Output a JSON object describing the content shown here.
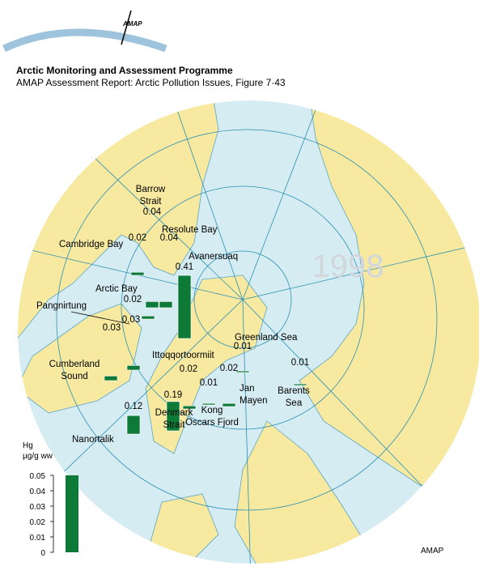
{
  "header": {
    "logo": "AMAP",
    "title": "Arctic Monitoring and Assessment Programme",
    "subtitle": "AMAP Assessment Report: Arctic Pollution Issues, Figure 7·43"
  },
  "chart_data": {
    "type": "map-bar",
    "year_label": "1998",
    "color": "#0e7a38",
    "stations": [
      {
        "label": [
          "Cambridge Bay"
        ],
        "value": 0.02
      },
      {
        "label": [
          "Barrow",
          "Strait"
        ],
        "value": 0.04
      },
      {
        "label": [
          "Resolute Bay"
        ],
        "value": 0.04
      },
      {
        "label": [
          "Avanersuaq"
        ],
        "value": 0.41
      },
      {
        "label": [
          "Arctic Bay"
        ],
        "value": 0.02
      },
      {
        "label": [
          "Pangnirtung"
        ],
        "value": 0.03
      },
      {
        "label": [
          "Cumberland",
          "Sound"
        ],
        "value": 0.03
      },
      {
        "label": [
          "Greenland Sea"
        ],
        "value": 0.01
      },
      {
        "label": [
          "Ittoqqortoormiit"
        ],
        "value": 0.02
      },
      {
        "label": [
          "Kong",
          "Oscars Fjord"
        ],
        "value": 0.01
      },
      {
        "label": [
          "Jan",
          "Mayen"
        ],
        "value": 0.02
      },
      {
        "label": [
          "Barents",
          "Sea"
        ],
        "value": 0.01
      },
      {
        "label": [
          "Denmark",
          "Strait"
        ],
        "value": 0.19
      },
      {
        "label": [
          "Nanortalik"
        ],
        "value": 0.12
      }
    ],
    "legend": {
      "title": [
        "Hg",
        "µg/g ww"
      ],
      "ylim": [
        0,
        0.05
      ],
      "yticks": [
        0,
        0.01,
        0.02,
        0.03,
        0.04,
        0.05
      ],
      "value": 0.05
    }
  },
  "footer": {
    "credit": "AMAP"
  }
}
